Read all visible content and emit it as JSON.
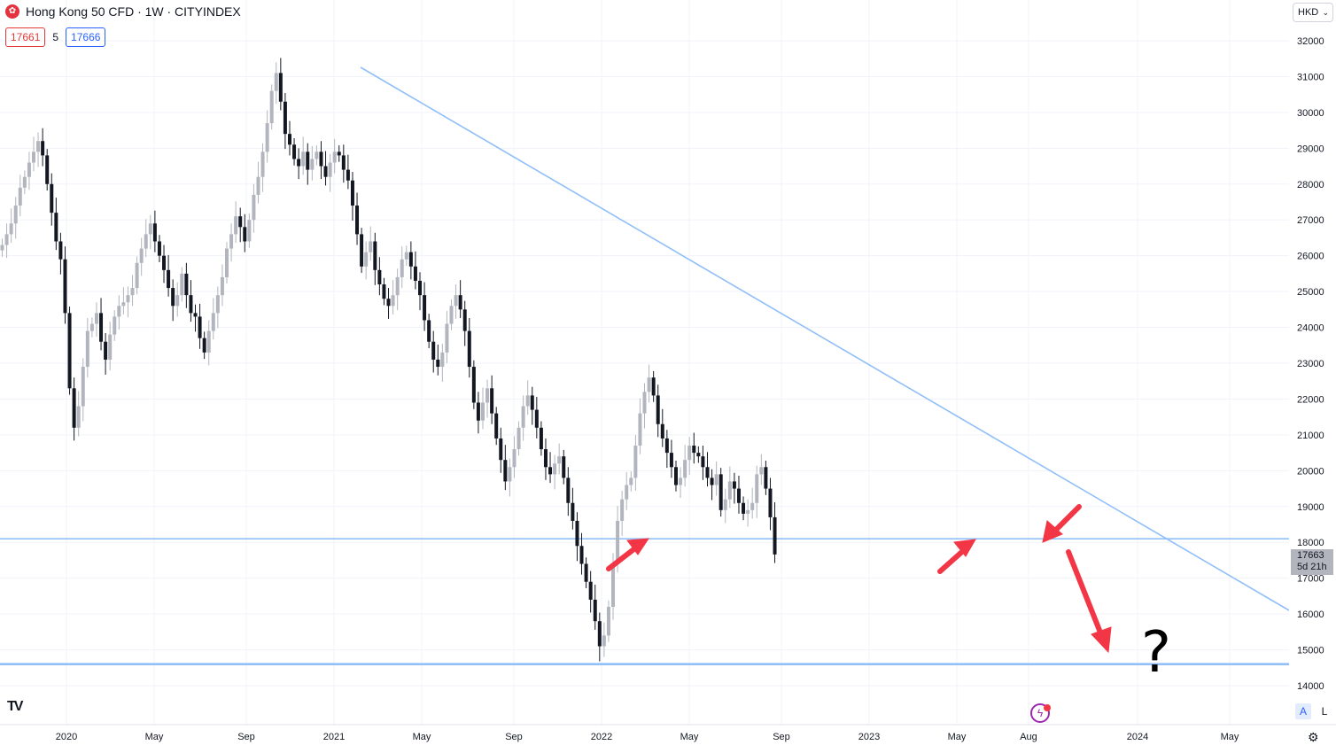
{
  "header": {
    "flag_icon": "hong-kong-flag-icon",
    "title": "Hong Kong 50 CFD · 1W · CITYINDEX",
    "bid": "17661",
    "spread": "5",
    "ask": "17666"
  },
  "currency": "HKD",
  "last_price": {
    "value": "17663",
    "countdown": "5d 21h"
  },
  "buttons": {
    "auto": "A",
    "log": "L"
  },
  "annotation_text": "?",
  "colors": {
    "up_candle": "#b2b5be",
    "down_candle": "#131722",
    "trendline": "#90bff9",
    "arrow": "#f23645",
    "bid": "#e53935",
    "ask": "#2962ff"
  },
  "chart_data": {
    "type": "candlestick",
    "title": "Hong Kong 50 CFD · 1W · CITYINDEX",
    "ylim": [
      13800,
      32300
    ],
    "y_ticks": [
      14000,
      15000,
      16000,
      17000,
      18000,
      19000,
      20000,
      21000,
      22000,
      23000,
      24000,
      25000,
      26000,
      27000,
      28000,
      29000,
      30000,
      31000,
      32000
    ],
    "x_ticks": [
      "2020",
      "May",
      "Sep",
      "2021",
      "May",
      "Sep",
      "2022",
      "May",
      "Sep",
      "2023",
      "May",
      "Aug",
      "2024",
      "May"
    ],
    "grid": true,
    "close_series": [
      26300,
      26600,
      26900,
      27400,
      27900,
      28200,
      28600,
      28900,
      29200,
      28800,
      28000,
      27200,
      26400,
      25900,
      24400,
      22300,
      21200,
      21800,
      22900,
      23900,
      24100,
      24400,
      23600,
      23100,
      23800,
      24300,
      24600,
      24700,
      24900,
      25100,
      25800,
      26200,
      26600,
      26900,
      26400,
      26000,
      25600,
      25100,
      24600,
      24900,
      25500,
      24900,
      24400,
      24300,
      23700,
      23300,
      23900,
      24400,
      24900,
      25400,
      26200,
      26600,
      27100,
      26800,
      26400,
      27000,
      27700,
      28200,
      28900,
      29700,
      30600,
      31100,
      30300,
      29400,
      29100,
      28700,
      28500,
      28900,
      28400,
      28700,
      28900,
      28500,
      28200,
      28600,
      28900,
      28800,
      28400,
      28100,
      27400,
      26600,
      25700,
      26100,
      26400,
      25600,
      25200,
      24800,
      24600,
      24900,
      25400,
      25900,
      26100,
      25700,
      25300,
      24900,
      24200,
      23600,
      23100,
      22900,
      23300,
      24100,
      24600,
      24900,
      24500,
      23900,
      22900,
      21900,
      21400,
      21900,
      22300,
      21600,
      20900,
      20300,
      19700,
      20100,
      20600,
      21200,
      21800,
      22100,
      21700,
      21200,
      20600,
      20100,
      19900,
      20200,
      20400,
      19800,
      19100,
      18600,
      17900,
      17400,
      16900,
      16400,
      15800,
      15100,
      15400,
      16200,
      17400,
      18600,
      19200,
      19600,
      19800,
      20700,
      21600,
      22200,
      22600,
      22100,
      21300,
      20900,
      20500,
      20100,
      19600,
      19800,
      20300,
      20700,
      20500,
      20400,
      20100,
      19800,
      19600,
      19900,
      18900,
      19200,
      19700,
      19500,
      19100,
      18800,
      18900,
      19100,
      19900,
      20100,
      19500,
      18700,
      17663
    ],
    "support_levels": [
      18100,
      14600
    ],
    "trendline": {
      "from": {
        "date": "2021-02",
        "price": 31200
      },
      "to": {
        "date": "2024-07",
        "price": 16100
      }
    },
    "annotations": [
      "arrow",
      "arrow",
      "arrow",
      "arrow",
      "?"
    ]
  }
}
